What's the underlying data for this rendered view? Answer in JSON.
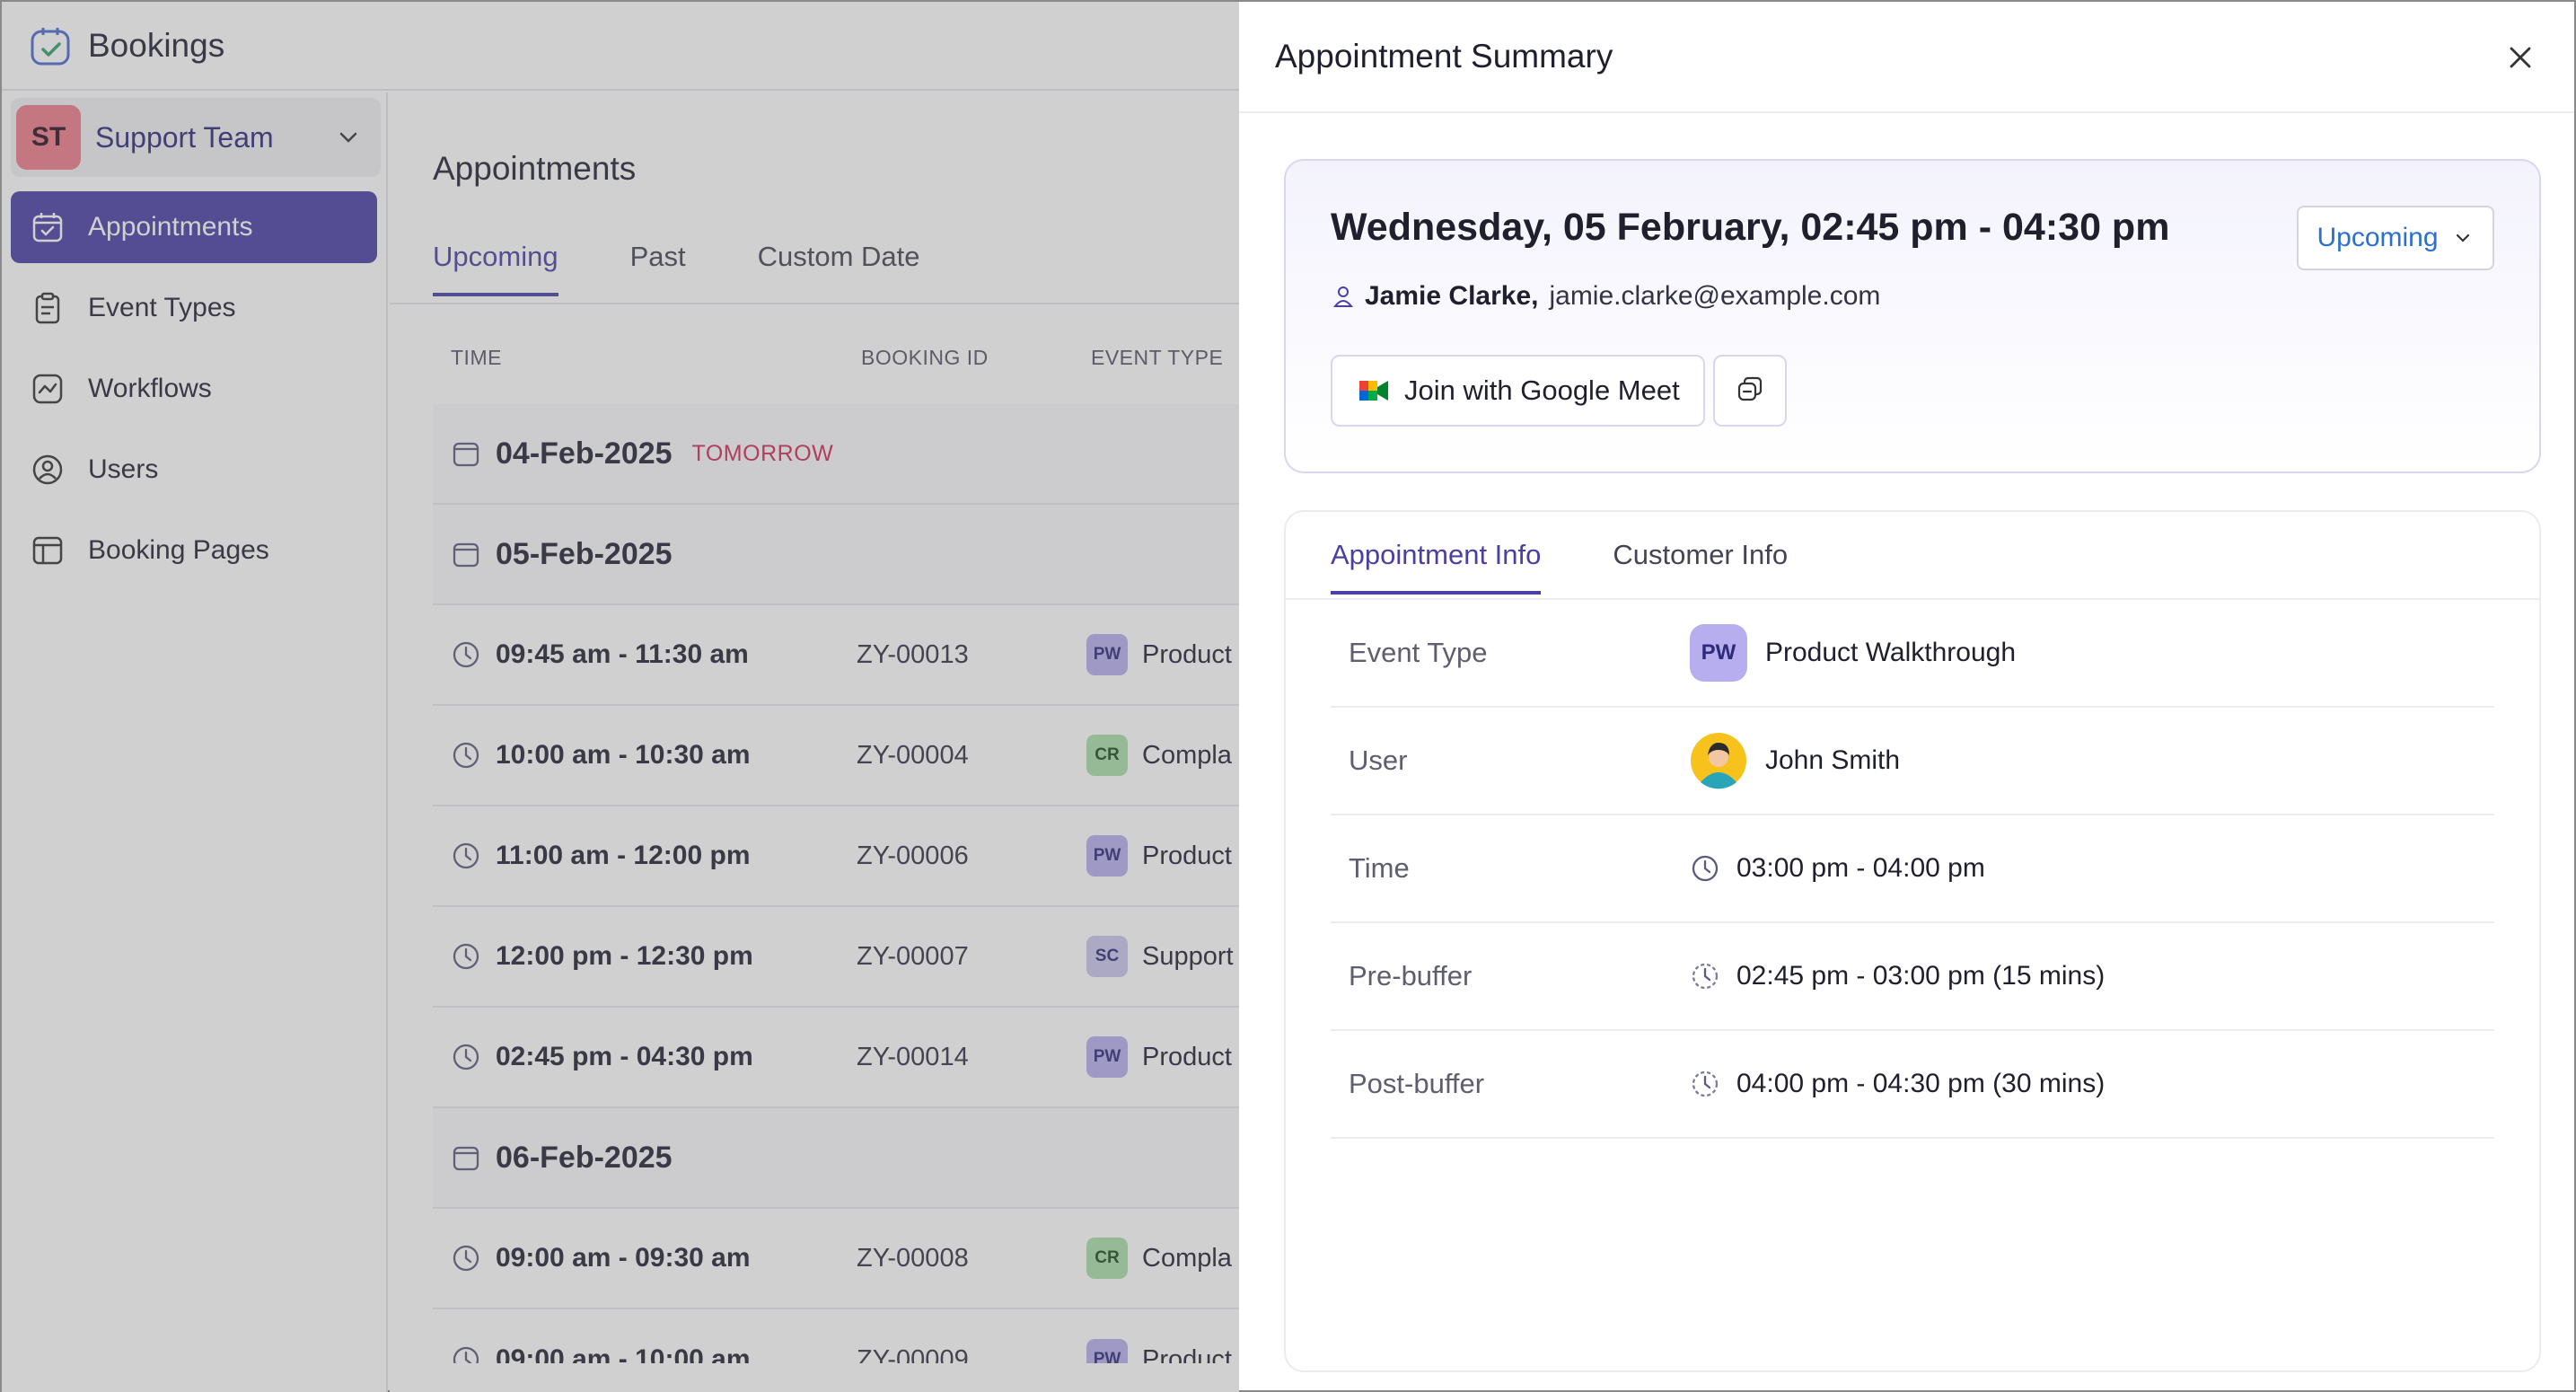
{
  "app": {
    "title": "Bookings"
  },
  "team": {
    "initials": "ST",
    "name": "Support Team"
  },
  "sidebar": {
    "items": [
      {
        "label": "Appointments",
        "icon": "calendar-check-icon"
      },
      {
        "label": "Event Types",
        "icon": "clipboard-icon"
      },
      {
        "label": "Workflows",
        "icon": "workflow-icon"
      },
      {
        "label": "Users",
        "icon": "user-circle-icon"
      },
      {
        "label": "Booking Pages",
        "icon": "booking-page-icon"
      }
    ]
  },
  "main": {
    "title": "Appointments",
    "tabs": [
      "Upcoming",
      "Past",
      "Custom Date"
    ],
    "columns": {
      "time": "TIME",
      "booking_id": "BOOKING ID",
      "event_type": "EVENT TYPE"
    },
    "rows": [
      {
        "kind": "date",
        "date": "04-Feb-2025",
        "tag": "TOMORROW"
      },
      {
        "kind": "date",
        "date": "05-Feb-2025"
      },
      {
        "kind": "appt",
        "time": "09:45 am - 11:30 am",
        "id": "ZY-00013",
        "badge": "PW",
        "event": "Product"
      },
      {
        "kind": "appt",
        "time": "10:00 am - 10:30 am",
        "id": "ZY-00004",
        "badge": "CR",
        "event": "Compla"
      },
      {
        "kind": "appt",
        "time": "11:00 am - 12:00 pm",
        "id": "ZY-00006",
        "badge": "PW",
        "event": "Product"
      },
      {
        "kind": "appt",
        "time": "12:00 pm - 12:30 pm",
        "id": "ZY-00007",
        "badge": "SC",
        "event": "Support"
      },
      {
        "kind": "appt",
        "time": "02:45 pm - 04:30 pm",
        "id": "ZY-00014",
        "badge": "PW",
        "event": "Product"
      },
      {
        "kind": "date",
        "date": "06-Feb-2025"
      },
      {
        "kind": "appt",
        "time": "09:00 am - 09:30 am",
        "id": "ZY-00008",
        "badge": "CR",
        "event": "Compla"
      },
      {
        "kind": "appt",
        "time": "09:00 am - 10:00 am",
        "id": "ZY-00009",
        "badge": "PW",
        "event": "Product"
      }
    ]
  },
  "panel": {
    "title": "Appointment Summary",
    "when": "Wednesday, 05 February, 02:45 pm - 04:30 pm",
    "status": "Upcoming",
    "customer_name": "Jamie Clarke,",
    "customer_email": "jamie.clarke@example.com",
    "meet_label": "Join with Google Meet",
    "tabs": [
      "Appointment Info",
      "Customer Info"
    ],
    "info": {
      "event_type_label": "Event Type",
      "event_type_badge": "PW",
      "event_type_value": "Product Walkthrough",
      "user_label": "User",
      "user_value": "John Smith",
      "time_label": "Time",
      "time_value": "03:00 pm - 04:00 pm",
      "prebuffer_label": "Pre-buffer",
      "prebuffer_value": "02:45 pm - 03:00 pm (15 mins)",
      "postbuffer_label": "Post-buffer",
      "postbuffer_value": "04:00 pm - 04:30 pm (30 mins)"
    }
  },
  "colors": {
    "accent": "#4b3fa6",
    "status_blue": "#2b6fd0",
    "tomorrow_red": "#d02856",
    "badge_pw": "#b7aef0",
    "badge_cr": "#a8dfa8",
    "badge_sc": "#c9c6ee"
  }
}
